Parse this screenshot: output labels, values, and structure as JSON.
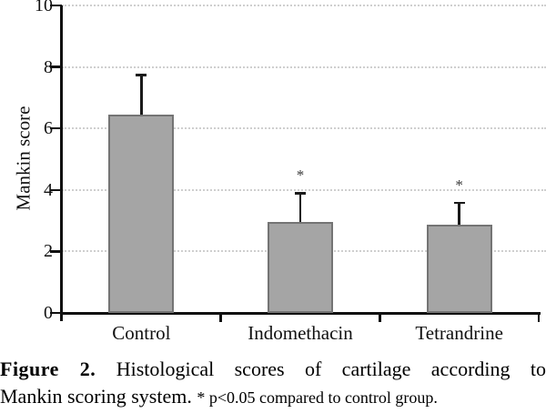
{
  "chart_data": {
    "type": "bar",
    "title": "",
    "xlabel": "",
    "ylabel": "Mankin score",
    "categories": [
      "Control",
      "Indomethacin",
      "Tetrandrine"
    ],
    "values": [
      6.45,
      2.95,
      2.87
    ],
    "errors_plus": [
      1.3,
      0.95,
      0.72
    ],
    "significance": [
      "",
      "*",
      "*"
    ],
    "ylim": [
      0,
      10
    ],
    "yticks": [
      0,
      2,
      4,
      6,
      8,
      10
    ],
    "grid": "horizontal dotted lines at each y tick",
    "legend": "none",
    "bar_fill_color": "#a5a5a5",
    "bar_border_color": "#747474",
    "gridline_color": "#cfcfcf",
    "axis_color": "#111111",
    "error_bar_color": "#1a1a1a"
  },
  "caption": {
    "label_bold": "Figure 2.",
    "line1_rest": "Histological scores of cartilage according to",
    "line2_main": "Mankin scoring system.",
    "line2_note": "* p<0.05 compared to control group."
  }
}
